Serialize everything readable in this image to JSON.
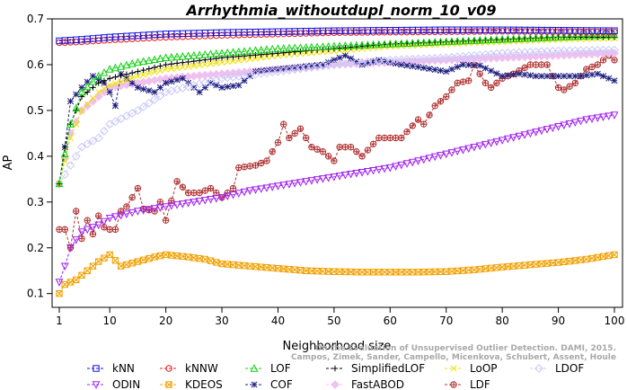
{
  "chart_data": {
    "type": "line",
    "title": "Arrhythmia_withoutdupl_norm_10_v09",
    "xlabel": "Neighborhood size",
    "ylabel": "AP",
    "xlim": [
      1,
      100
    ],
    "ylim": [
      0.07,
      0.7
    ],
    "x_ticks": [
      1,
      10,
      20,
      30,
      40,
      50,
      60,
      70,
      80,
      90,
      100
    ],
    "y_ticks": [
      0.1,
      0.2,
      0.3,
      0.4,
      0.5,
      0.6,
      0.7
    ],
    "grid": false,
    "legend_position": "bottom",
    "credit_lines": [
      "Campos, Zimek, Sander, Campello, Micenkova, Schubert, Assent, Houle",
      "On the Evaluation of Unsupervised Outlier Detection. DAMI, 2015."
    ],
    "series": [
      {
        "name": "kNN",
        "color": "#1010e0",
        "marker": "square",
        "knots": [
          [
            1,
            0.652
          ],
          [
            5,
            0.655
          ],
          [
            10,
            0.66
          ],
          [
            20,
            0.667
          ],
          [
            30,
            0.67
          ],
          [
            40,
            0.672
          ],
          [
            50,
            0.674
          ],
          [
            60,
            0.675
          ],
          [
            70,
            0.676
          ],
          [
            80,
            0.676
          ],
          [
            90,
            0.675
          ],
          [
            100,
            0.674
          ]
        ]
      },
      {
        "name": "kNNW",
        "color": "#e02020",
        "marker": "circle",
        "knots": [
          [
            1,
            0.648
          ],
          [
            5,
            0.65
          ],
          [
            10,
            0.654
          ],
          [
            20,
            0.66
          ],
          [
            30,
            0.664
          ],
          [
            40,
            0.667
          ],
          [
            50,
            0.67
          ],
          [
            60,
            0.671
          ],
          [
            70,
            0.672
          ],
          [
            80,
            0.673
          ],
          [
            90,
            0.672
          ],
          [
            100,
            0.671
          ]
        ]
      },
      {
        "name": "LOF",
        "color": "#10d010",
        "marker": "triangle",
        "knots": [
          [
            1,
            0.34
          ],
          [
            3,
            0.47
          ],
          [
            5,
            0.54
          ],
          [
            8,
            0.575
          ],
          [
            10,
            0.59
          ],
          [
            15,
            0.605
          ],
          [
            20,
            0.615
          ],
          [
            30,
            0.625
          ],
          [
            40,
            0.635
          ],
          [
            50,
            0.64
          ],
          [
            60,
            0.645
          ],
          [
            70,
            0.65
          ],
          [
            80,
            0.655
          ],
          [
            90,
            0.66
          ],
          [
            100,
            0.665
          ]
        ]
      },
      {
        "name": "SimplifiedLOF",
        "color": "#000000",
        "marker": "plus",
        "knots": [
          [
            1,
            0.34
          ],
          [
            2,
            0.42
          ],
          [
            3,
            0.47
          ],
          [
            5,
            0.53
          ],
          [
            8,
            0.56
          ],
          [
            10,
            0.57
          ],
          [
            15,
            0.585
          ],
          [
            20,
            0.6
          ],
          [
            30,
            0.615
          ],
          [
            40,
            0.625
          ],
          [
            50,
            0.635
          ],
          [
            60,
            0.645
          ],
          [
            70,
            0.65
          ],
          [
            80,
            0.655
          ],
          [
            90,
            0.66
          ],
          [
            100,
            0.66
          ]
        ]
      },
      {
        "name": "LoOP",
        "color": "#f0e000",
        "marker": "x",
        "knots": [
          [
            1,
            0.34
          ],
          [
            3,
            0.44
          ],
          [
            5,
            0.5
          ],
          [
            8,
            0.54
          ],
          [
            10,
            0.555
          ],
          [
            15,
            0.575
          ],
          [
            20,
            0.59
          ],
          [
            30,
            0.605
          ],
          [
            40,
            0.62
          ],
          [
            50,
            0.63
          ],
          [
            60,
            0.64
          ],
          [
            70,
            0.645
          ],
          [
            80,
            0.65
          ],
          [
            90,
            0.655
          ],
          [
            100,
            0.658
          ]
        ]
      },
      {
        "name": "LDOF",
        "color": "#c8c8f8",
        "marker": "diamond",
        "knots": [
          [
            1,
            0.34
          ],
          [
            3,
            0.38
          ],
          [
            5,
            0.42
          ],
          [
            8,
            0.44
          ],
          [
            10,
            0.47
          ],
          [
            15,
            0.5
          ],
          [
            20,
            0.54
          ],
          [
            25,
            0.555
          ],
          [
            30,
            0.57
          ],
          [
            40,
            0.585
          ],
          [
            50,
            0.6
          ],
          [
            60,
            0.61
          ],
          [
            70,
            0.615
          ],
          [
            80,
            0.625
          ],
          [
            90,
            0.63
          ],
          [
            100,
            0.632
          ]
        ]
      },
      {
        "name": "ODIN",
        "color": "#a020f0",
        "marker": "triangle-down",
        "knots": [
          [
            1,
            0.125
          ],
          [
            2,
            0.16
          ],
          [
            3,
            0.2
          ],
          [
            5,
            0.235
          ],
          [
            8,
            0.25
          ],
          [
            10,
            0.265
          ],
          [
            15,
            0.28
          ],
          [
            20,
            0.29
          ],
          [
            25,
            0.3
          ],
          [
            30,
            0.31
          ],
          [
            35,
            0.325
          ],
          [
            40,
            0.335
          ],
          [
            45,
            0.345
          ],
          [
            50,
            0.355
          ],
          [
            55,
            0.365
          ],
          [
            60,
            0.375
          ],
          [
            65,
            0.39
          ],
          [
            70,
            0.405
          ],
          [
            75,
            0.42
          ],
          [
            80,
            0.435
          ],
          [
            85,
            0.45
          ],
          [
            90,
            0.465
          ],
          [
            95,
            0.48
          ],
          [
            100,
            0.49
          ]
        ]
      },
      {
        "name": "KDEOS",
        "color": "#f0a000",
        "marker": "square-x",
        "knots": [
          [
            1,
            0.1
          ],
          [
            2,
            0.12
          ],
          [
            4,
            0.13
          ],
          [
            6,
            0.15
          ],
          [
            8,
            0.17
          ],
          [
            10,
            0.185
          ],
          [
            12,
            0.16
          ],
          [
            15,
            0.17
          ],
          [
            18,
            0.18
          ],
          [
            20,
            0.185
          ],
          [
            24,
            0.18
          ],
          [
            27,
            0.175
          ],
          [
            30,
            0.165
          ],
          [
            35,
            0.16
          ],
          [
            40,
            0.155
          ],
          [
            45,
            0.15
          ],
          [
            50,
            0.148
          ],
          [
            55,
            0.147
          ],
          [
            60,
            0.147
          ],
          [
            65,
            0.147
          ],
          [
            70,
            0.148
          ],
          [
            75,
            0.152
          ],
          [
            80,
            0.158
          ],
          [
            85,
            0.163
          ],
          [
            90,
            0.168
          ],
          [
            95,
            0.175
          ],
          [
            100,
            0.185
          ]
        ]
      },
      {
        "name": "COF",
        "color": "#202080",
        "marker": "asterisk",
        "knots": [
          [
            1,
            0.34
          ],
          [
            2,
            0.42
          ],
          [
            3,
            0.52
          ],
          [
            5,
            0.55
          ],
          [
            7,
            0.575
          ],
          [
            9,
            0.56
          ],
          [
            10,
            0.54
          ],
          [
            11,
            0.51
          ],
          [
            12,
            0.58
          ],
          [
            15,
            0.55
          ],
          [
            18,
            0.54
          ],
          [
            20,
            0.56
          ],
          [
            23,
            0.57
          ],
          [
            26,
            0.54
          ],
          [
            28,
            0.56
          ],
          [
            30,
            0.55
          ],
          [
            33,
            0.555
          ],
          [
            36,
            0.585
          ],
          [
            40,
            0.59
          ],
          [
            44,
            0.595
          ],
          [
            48,
            0.6
          ],
          [
            52,
            0.62
          ],
          [
            55,
            0.6
          ],
          [
            58,
            0.61
          ],
          [
            62,
            0.6
          ],
          [
            65,
            0.595
          ],
          [
            70,
            0.585
          ],
          [
            73,
            0.6
          ],
          [
            76,
            0.598
          ],
          [
            80,
            0.575
          ],
          [
            83,
            0.58
          ],
          [
            86,
            0.575
          ],
          [
            90,
            0.575
          ],
          [
            94,
            0.575
          ],
          [
            97,
            0.58
          ],
          [
            100,
            0.565
          ]
        ]
      },
      {
        "name": "FastABOD",
        "color": "#f0c0f0",
        "marker": "diamond-filled",
        "knots": [
          [
            1,
            0.34
          ],
          [
            3,
            0.45
          ],
          [
            5,
            0.5
          ],
          [
            8,
            0.53
          ],
          [
            10,
            0.55
          ],
          [
            15,
            0.56
          ],
          [
            20,
            0.57
          ],
          [
            25,
            0.575
          ],
          [
            30,
            0.58
          ],
          [
            40,
            0.59
          ],
          [
            50,
            0.6
          ],
          [
            60,
            0.605
          ],
          [
            70,
            0.61
          ],
          [
            80,
            0.615
          ],
          [
            90,
            0.62
          ],
          [
            100,
            0.625
          ]
        ]
      },
      {
        "name": "LDF",
        "color": "#b03030",
        "marker": "circle-plus",
        "knots": [
          [
            1,
            0.24
          ],
          [
            2,
            0.24
          ],
          [
            3,
            0.2
          ],
          [
            4,
            0.28
          ],
          [
            5,
            0.22
          ],
          [
            6,
            0.26
          ],
          [
            7,
            0.23
          ],
          [
            8,
            0.27
          ],
          [
            9,
            0.245
          ],
          [
            10,
            0.24
          ],
          [
            11,
            0.24
          ],
          [
            12,
            0.28
          ],
          [
            13,
            0.29
          ],
          [
            15,
            0.33
          ],
          [
            16,
            0.285
          ],
          [
            18,
            0.28
          ],
          [
            19,
            0.3
          ],
          [
            20,
            0.26
          ],
          [
            22,
            0.345
          ],
          [
            24,
            0.32
          ],
          [
            25,
            0.32
          ],
          [
            26,
            0.32
          ],
          [
            28,
            0.33
          ],
          [
            30,
            0.31
          ],
          [
            32,
            0.33
          ],
          [
            33,
            0.375
          ],
          [
            36,
            0.38
          ],
          [
            38,
            0.39
          ],
          [
            40,
            0.43
          ],
          [
            41,
            0.47
          ],
          [
            42,
            0.44
          ],
          [
            44,
            0.46
          ],
          [
            46,
            0.42
          ],
          [
            48,
            0.41
          ],
          [
            50,
            0.39
          ],
          [
            51,
            0.42
          ],
          [
            53,
            0.42
          ],
          [
            55,
            0.4
          ],
          [
            58,
            0.44
          ],
          [
            62,
            0.44
          ],
          [
            65,
            0.48
          ],
          [
            66,
            0.47
          ],
          [
            68,
            0.51
          ],
          [
            70,
            0.53
          ],
          [
            72,
            0.56
          ],
          [
            74,
            0.565
          ],
          [
            75,
            0.6
          ],
          [
            77,
            0.56
          ],
          [
            78,
            0.55
          ],
          [
            80,
            0.57
          ],
          [
            82,
            0.58
          ],
          [
            85,
            0.6
          ],
          [
            88,
            0.6
          ],
          [
            90,
            0.55
          ],
          [
            91,
            0.545
          ],
          [
            93,
            0.56
          ],
          [
            95,
            0.59
          ],
          [
            97,
            0.6
          ],
          [
            99,
            0.62
          ],
          [
            100,
            0.61
          ]
        ]
      }
    ]
  }
}
